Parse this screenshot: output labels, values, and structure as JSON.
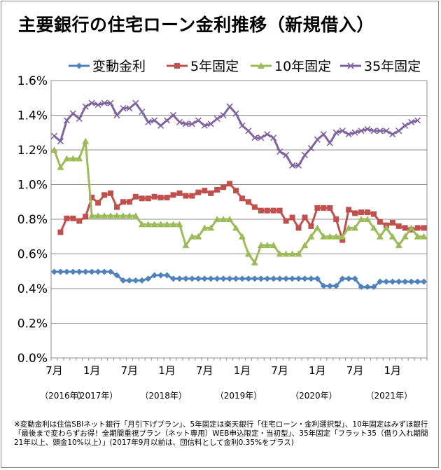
{
  "title": "主要銀行の住宅ローン金利推移（新規借入）",
  "footnote": "※変動金利は住信SBIネット銀行「月引下げプラン」、5年固定は楽天銀行「住宅ローン・金利選択型」、10年固定はみずほ銀行「最後まで変わらずお得！全期間重視プラン（ネット専用）WEB申込限定・当初型」、35年固定「フラット35（借り入れ期間21年以上、頭金10%以上）」(2017年9月以前は、団信料として金利0.35%をプラス)",
  "chart_data": {
    "type": "line",
    "ylim": [
      0,
      1.6
    ],
    "yticks": [
      "0.0%",
      "0.2%",
      "0.4%",
      "0.6%",
      "0.8%",
      "1.0%",
      "1.2%",
      "1.4%",
      "1.6%"
    ],
    "grid": true,
    "legend_position": "top",
    "x_tick_labels": [
      {
        "index": 0,
        "label": "7月"
      },
      {
        "index": 6,
        "label": "1月"
      },
      {
        "index": 12,
        "label": "7月"
      },
      {
        "index": 18,
        "label": "1月"
      },
      {
        "index": 24,
        "label": "7月"
      },
      {
        "index": 30,
        "label": "1月"
      },
      {
        "index": 36,
        "label": "7月"
      },
      {
        "index": 42,
        "label": "1月"
      },
      {
        "index": 48,
        "label": "7月"
      },
      {
        "index": 54,
        "label": "1月"
      }
    ],
    "year_labels": [
      {
        "index": 1,
        "label": "（2016年）"
      },
      {
        "index": 6,
        "label": "（2017年）"
      },
      {
        "index": 17,
        "label": "（2018年）"
      },
      {
        "index": 29,
        "label": "（2019年）"
      },
      {
        "index": 41,
        "label": "（2020年）"
      },
      {
        "index": 53,
        "label": "（2021年）"
      }
    ],
    "series": [
      {
        "name": "変動金利",
        "color": "#4f81bd",
        "marker": "diamond",
        "values": [
          0.497,
          0.497,
          0.497,
          0.497,
          0.497,
          0.497,
          0.497,
          0.497,
          0.497,
          0.497,
          0.477,
          0.447,
          0.447,
          0.447,
          0.447,
          0.457,
          0.477,
          0.477,
          0.477,
          0.457,
          0.457,
          0.457,
          0.457,
          0.457,
          0.457,
          0.457,
          0.457,
          0.457,
          0.457,
          0.457,
          0.457,
          0.457,
          0.457,
          0.457,
          0.457,
          0.457,
          0.457,
          0.457,
          0.457,
          0.457,
          0.457,
          0.457,
          0.457,
          0.415,
          0.415,
          0.415,
          0.457,
          0.457,
          0.457,
          0.41,
          0.41,
          0.41,
          0.44,
          0.44,
          0.44,
          0.44,
          0.44,
          0.44,
          0.44,
          0.44
        ]
      },
      {
        "name": "5年固定",
        "color": "#c0504d",
        "marker": "square",
        "values": [
          null,
          0.725,
          0.805,
          0.805,
          0.79,
          0.815,
          0.925,
          0.895,
          0.94,
          0.95,
          0.87,
          0.9,
          0.9,
          0.93,
          0.92,
          0.92,
          0.93,
          0.925,
          0.925,
          0.94,
          0.95,
          0.935,
          0.935,
          0.955,
          0.965,
          0.95,
          0.97,
          0.985,
          1.005,
          0.965,
          0.92,
          0.9,
          0.87,
          0.85,
          0.85,
          0.85,
          0.85,
          0.79,
          0.81,
          0.75,
          0.81,
          0.76,
          0.865,
          0.865,
          0.865,
          0.8,
          0.68,
          0.855,
          0.835,
          0.84,
          0.84,
          0.83,
          0.785,
          0.765,
          0.78,
          0.76,
          0.75,
          0.74,
          0.75,
          0.75
        ]
      },
      {
        "name": "10年固定",
        "color": "#9bbb59",
        "marker": "triangle",
        "values": [
          1.2,
          1.1,
          1.15,
          1.15,
          1.15,
          1.25,
          0.82,
          0.82,
          0.82,
          0.82,
          0.82,
          0.82,
          0.82,
          0.82,
          0.77,
          0.77,
          0.77,
          0.77,
          0.77,
          0.77,
          0.77,
          0.65,
          0.7,
          0.7,
          0.75,
          0.75,
          0.8,
          0.8,
          0.8,
          0.75,
          0.7,
          0.6,
          0.55,
          0.65,
          0.65,
          0.65,
          0.6,
          0.6,
          0.6,
          0.6,
          0.65,
          0.7,
          0.75,
          0.7,
          0.7,
          0.7,
          0.7,
          0.75,
          0.75,
          0.8,
          0.8,
          0.75,
          0.7,
          0.75,
          0.7,
          0.65,
          0.7,
          0.75,
          0.7,
          0.7
        ]
      },
      {
        "name": "35年固定",
        "color": "#8064a2",
        "marker": "x",
        "values": [
          1.28,
          1.25,
          1.37,
          1.41,
          1.38,
          1.45,
          1.47,
          1.46,
          1.47,
          1.47,
          1.4,
          1.44,
          1.44,
          1.47,
          1.42,
          1.36,
          1.37,
          1.34,
          1.37,
          1.4,
          1.36,
          1.35,
          1.35,
          1.37,
          1.34,
          1.35,
          1.38,
          1.4,
          1.45,
          1.41,
          1.34,
          1.31,
          1.27,
          1.27,
          1.29,
          1.27,
          1.19,
          1.17,
          1.11,
          1.11,
          1.17,
          1.21,
          1.26,
          1.29,
          1.24,
          1.3,
          1.31,
          1.29,
          1.3,
          1.31,
          1.32,
          1.31,
          1.31,
          1.31,
          1.29,
          1.31,
          1.34,
          1.36,
          1.37,
          null
        ]
      }
    ]
  }
}
